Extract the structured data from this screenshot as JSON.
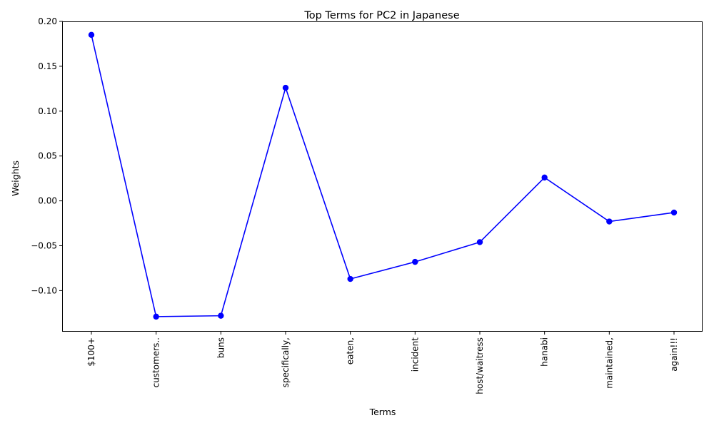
{
  "chart_data": {
    "type": "line",
    "title": "Top Terms for PC2 in Japanese",
    "xlabel": "Terms",
    "ylabel": "Weights",
    "categories": [
      "$100+",
      "customers..",
      "buns",
      "specifically,",
      "eaten,",
      "incident",
      "host/waitress",
      "hanabi",
      "maintained,",
      "again!!!"
    ],
    "series": [
      {
        "values": [
          0.185,
          -0.129,
          -0.128,
          0.126,
          -0.087,
          -0.068,
          -0.046,
          0.026,
          -0.023,
          -0.013
        ],
        "color": "#0000ff",
        "marker": "circle"
      }
    ],
    "ylim": [
      -0.145,
      0.2
    ],
    "yticks": [
      -0.1,
      -0.05,
      0.0,
      0.05,
      0.1,
      0.15,
      0.2
    ],
    "ytick_labels": [
      "−0.10",
      "−0.05",
      "0.00",
      "0.05",
      "0.10",
      "0.15",
      "0.20"
    ],
    "xtick_rotation": "vertical",
    "grid": false,
    "legend": false
  }
}
